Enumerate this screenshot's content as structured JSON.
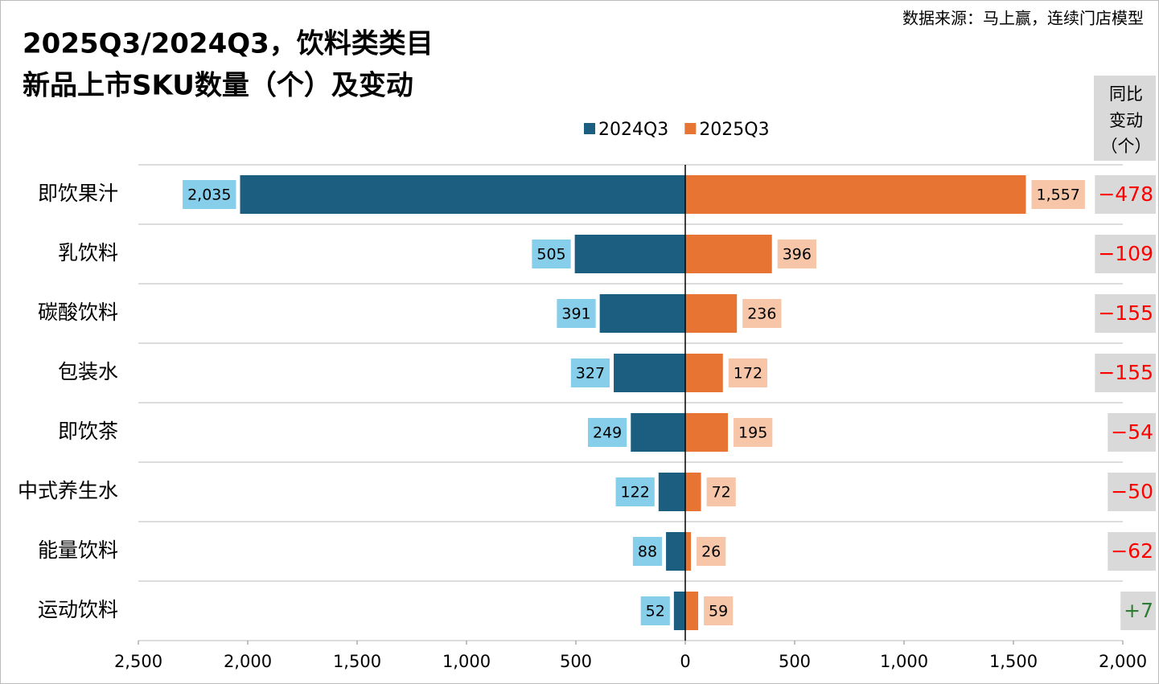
{
  "chart_data": {
    "type": "butterfly",
    "title": [
      "2025Q3/2024Q3，饮料类类目",
      "新品上市SKU数量（个）及变动"
    ],
    "source": "数据来源：马上赢，连续门店模型",
    "categories": [
      "即饮果汁",
      "乳饮料",
      "碳酸饮料",
      "包装水",
      "即饮茶",
      "中式养生水",
      "能量饮料",
      "运动饮料"
    ],
    "series": [
      {
        "name": "2024Q3",
        "color": "#1b5e80",
        "label_color": "#87ceeb",
        "side": "left",
        "values": [
          2035,
          505,
          391,
          327,
          249,
          122,
          88,
          52
        ],
        "value_labels": [
          "2,035",
          "505",
          "391",
          "327",
          "249",
          "122",
          "88",
          "52"
        ]
      },
      {
        "name": "2025Q3",
        "color": "#e87434",
        "label_color": "#f7c6a9",
        "side": "right",
        "values": [
          1557,
          396,
          236,
          172,
          195,
          72,
          26,
          59
        ],
        "value_labels": [
          "1,557",
          "396",
          "236",
          "172",
          "195",
          "72",
          "26",
          "59"
        ]
      }
    ],
    "change": {
      "header": [
        "同比",
        "变动",
        "（个）"
      ],
      "negative_color": "#ff0000",
      "positive_color": "#2e7d32",
      "values": [
        -478,
        -109,
        -155,
        -155,
        -54,
        -50,
        -62,
        7
      ],
      "value_labels": [
        "−478",
        "−109",
        "−155",
        "−155",
        "−54",
        "−50",
        "−62",
        "+7"
      ]
    },
    "xlim": [
      -2500,
      2000
    ],
    "xticks": [
      {
        "value": -2500,
        "label": "2,500"
      },
      {
        "value": -2000,
        "label": "2,000"
      },
      {
        "value": -1500,
        "label": "1,500"
      },
      {
        "value": -1000,
        "label": "1,000"
      },
      {
        "value": -500,
        "label": "500"
      },
      0,
      {
        "value": 500,
        "label": "500"
      },
      {
        "value": 1000,
        "label": "1,000"
      },
      {
        "value": 1500,
        "label": "1,500"
      },
      {
        "value": 2000,
        "label": "2,000"
      }
    ]
  }
}
